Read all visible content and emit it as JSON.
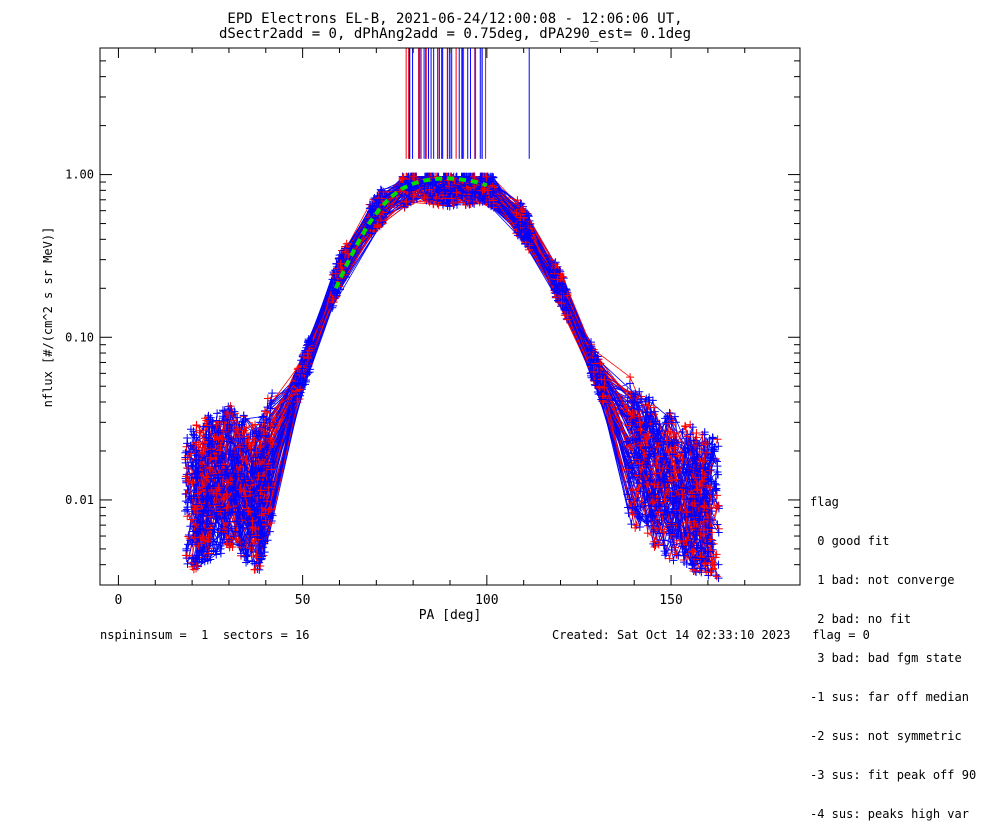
{
  "chart_data": {
    "type": "line",
    "title": "EPD Electrons EL-B, 2021-06-24/12:00:08 - 12:06:06 UT,",
    "subtitle": "dSectr2add = 0, dPhAng2add = 0.75deg, dPA290_est=   0.1deg",
    "xlabel": "PA [deg]",
    "ylabel": "nflux [#/(cm^2 s sr MeV)]",
    "xlim": [
      -5,
      185
    ],
    "ylim": [
      0.003,
      6.0
    ],
    "yscale": "log",
    "x_ticks": [
      0,
      50,
      100,
      150
    ],
    "x_tick_labels": [
      "0",
      "50",
      "100",
      "150"
    ],
    "y_ticks": [
      0.01,
      0.1,
      1.0
    ],
    "y_tick_labels": [
      "0.01",
      "0.10",
      "1.00"
    ],
    "grid": false,
    "series_colors": [
      "#0000ff",
      "#ff0000"
    ],
    "fit_color": "#00dd00",
    "representative_profile": {
      "x": [
        20,
        25,
        30,
        38,
        40,
        50,
        60,
        70,
        80,
        90,
        100,
        110,
        120,
        140,
        150,
        157,
        160
      ],
      "y": [
        0.01,
        0.012,
        0.014,
        0.01,
        0.014,
        0.06,
        0.25,
        0.6,
        0.88,
        0.82,
        0.86,
        0.5,
        0.2,
        0.018,
        0.012,
        0.01,
        0.009
      ]
    },
    "fit_curve": {
      "x": [
        59,
        62,
        65,
        68,
        71,
        74,
        77,
        80,
        83,
        86,
        89,
        92,
        95,
        97,
        100
      ],
      "y": [
        0.2,
        0.28,
        0.38,
        0.5,
        0.62,
        0.73,
        0.82,
        0.88,
        0.92,
        0.94,
        0.95,
        0.94,
        0.92,
        0.9,
        0.86
      ]
    },
    "legend_title": "flag",
    "legend": [
      " 0 good fit",
      " 1 bad: not converge",
      " 2 bad: no fit",
      " 3 bad: bad fgm state",
      "-1 sus: far off median",
      "-2 sus: not symmetric",
      "-3 sus: fit peak off 90",
      "-4 sus: peaks high var"
    ]
  },
  "footer": {
    "left": "nspininsum =  1  sectors = 16",
    "right": "Created: Sat Oct 14 02:33:10 2023   flag = 0"
  }
}
